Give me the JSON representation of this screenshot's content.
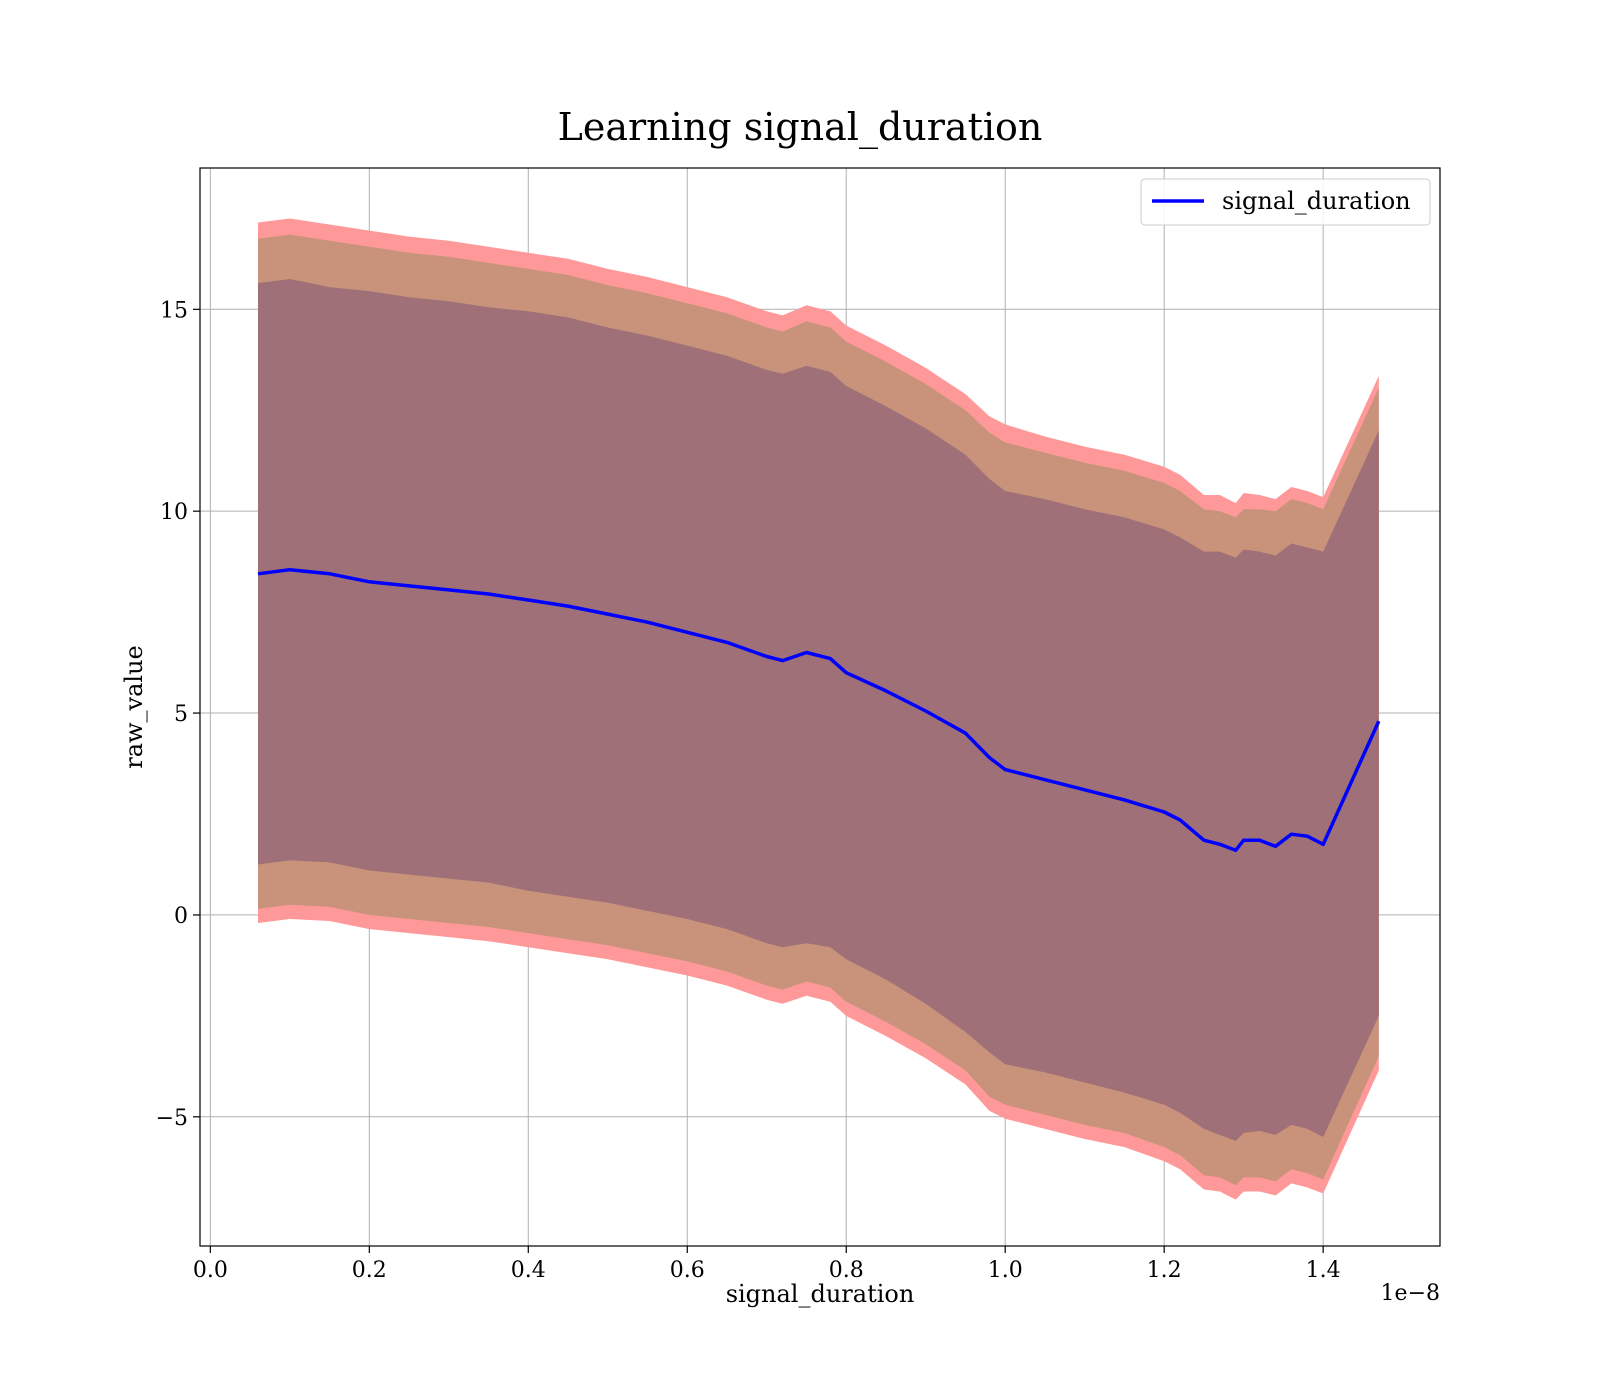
{
  "chart_data": {
    "type": "line",
    "title": "Learning signal_duration",
    "xlabel": "signal_duration",
    "ylabel": "raw_value",
    "x_offset_label": "1e−8",
    "xlim": [
      -0.013,
      1.547
    ],
    "ylim": [
      -8.2,
      18.5
    ],
    "x_ticks": [
      0.0,
      0.2,
      0.4,
      0.6,
      0.8,
      1.0,
      1.2,
      1.4
    ],
    "x_tick_labels": [
      "0.0",
      "0.2",
      "0.4",
      "0.6",
      "0.8",
      "1.0",
      "1.2",
      "1.4"
    ],
    "y_ticks": [
      -5,
      0,
      5,
      10,
      15
    ],
    "y_tick_labels": [
      "−5",
      "0",
      "5",
      "10",
      "15"
    ],
    "grid": true,
    "legend_position": "top-right",
    "colors": {
      "line": "#0000ff",
      "band_outer": "#ff9999",
      "band_middle": "#c8937a",
      "band_inner": "#a07078",
      "grid": "#b0b0b0"
    },
    "series": [
      {
        "name": "signal_duration",
        "x": [
          0.06,
          0.1,
          0.15,
          0.2,
          0.25,
          0.3,
          0.35,
          0.4,
          0.45,
          0.5,
          0.55,
          0.6,
          0.65,
          0.7,
          0.72,
          0.75,
          0.78,
          0.8,
          0.85,
          0.9,
          0.95,
          0.98,
          1.0,
          1.05,
          1.1,
          1.15,
          1.2,
          1.22,
          1.25,
          1.27,
          1.29,
          1.3,
          1.32,
          1.34,
          1.36,
          1.38,
          1.4,
          1.47
        ],
        "y": [
          8.45,
          8.55,
          8.45,
          8.25,
          8.15,
          8.05,
          7.95,
          7.8,
          7.65,
          7.45,
          7.25,
          7.0,
          6.75,
          6.4,
          6.3,
          6.5,
          6.35,
          6.0,
          5.55,
          5.05,
          4.5,
          3.9,
          3.6,
          3.35,
          3.1,
          2.85,
          2.55,
          2.35,
          1.85,
          1.75,
          1.6,
          1.85,
          1.85,
          1.7,
          2.0,
          1.95,
          1.75,
          4.8
        ],
        "band_inner": {
          "upper": [
            15.65,
            15.75,
            15.55,
            15.45,
            15.3,
            15.2,
            15.05,
            14.95,
            14.8,
            14.55,
            14.35,
            14.1,
            13.85,
            13.5,
            13.4,
            13.6,
            13.45,
            13.1,
            12.6,
            12.05,
            11.4,
            10.8,
            10.5,
            10.3,
            10.05,
            9.85,
            9.55,
            9.35,
            9.0,
            9.0,
            8.85,
            9.05,
            9.0,
            8.9,
            9.2,
            9.1,
            9.0,
            12.0
          ],
          "lower": [
            1.25,
            1.35,
            1.3,
            1.1,
            1.0,
            0.9,
            0.8,
            0.6,
            0.45,
            0.3,
            0.1,
            -0.1,
            -0.35,
            -0.7,
            -0.8,
            -0.7,
            -0.8,
            -1.1,
            -1.6,
            -2.2,
            -2.9,
            -3.4,
            -3.7,
            -3.9,
            -4.15,
            -4.4,
            -4.7,
            -4.9,
            -5.3,
            -5.45,
            -5.6,
            -5.4,
            -5.35,
            -5.45,
            -5.2,
            -5.3,
            -5.5,
            -2.5
          ]
        },
        "band_middle": {
          "upper": [
            16.75,
            16.85,
            16.7,
            16.55,
            16.4,
            16.3,
            16.15,
            16.0,
            15.85,
            15.6,
            15.4,
            15.15,
            14.9,
            14.55,
            14.45,
            14.7,
            14.55,
            14.2,
            13.7,
            13.15,
            12.5,
            11.95,
            11.7,
            11.45,
            11.2,
            11.0,
            10.7,
            10.5,
            10.05,
            10.0,
            9.85,
            10.05,
            10.05,
            10.0,
            10.3,
            10.2,
            10.05,
            13.05
          ],
          "lower": [
            0.15,
            0.25,
            0.2,
            0.0,
            -0.1,
            -0.2,
            -0.3,
            -0.45,
            -0.6,
            -0.75,
            -0.95,
            -1.15,
            -1.4,
            -1.75,
            -1.85,
            -1.65,
            -1.8,
            -2.15,
            -2.65,
            -3.2,
            -3.85,
            -4.5,
            -4.7,
            -4.95,
            -5.2,
            -5.4,
            -5.75,
            -5.95,
            -6.45,
            -6.5,
            -6.7,
            -6.5,
            -6.5,
            -6.6,
            -6.3,
            -6.4,
            -6.55,
            -3.5
          ]
        },
        "band_outer": {
          "upper": [
            17.15,
            17.25,
            17.1,
            16.95,
            16.8,
            16.7,
            16.55,
            16.4,
            16.25,
            16.0,
            15.8,
            15.55,
            15.3,
            14.95,
            14.85,
            15.1,
            14.95,
            14.6,
            14.1,
            13.55,
            12.9,
            12.35,
            12.15,
            11.85,
            11.6,
            11.4,
            11.1,
            10.9,
            10.4,
            10.4,
            10.2,
            10.45,
            10.4,
            10.3,
            10.6,
            10.5,
            10.35,
            13.35
          ],
          "lower": [
            -0.2,
            -0.1,
            -0.15,
            -0.35,
            -0.45,
            -0.55,
            -0.65,
            -0.8,
            -0.95,
            -1.1,
            -1.3,
            -1.5,
            -1.75,
            -2.1,
            -2.2,
            -2.0,
            -2.15,
            -2.5,
            -3.0,
            -3.55,
            -4.2,
            -4.85,
            -5.05,
            -5.3,
            -5.55,
            -5.75,
            -6.1,
            -6.3,
            -6.8,
            -6.85,
            -7.05,
            -6.85,
            -6.85,
            -6.95,
            -6.65,
            -6.75,
            -6.9,
            -3.85
          ]
        }
      }
    ]
  }
}
